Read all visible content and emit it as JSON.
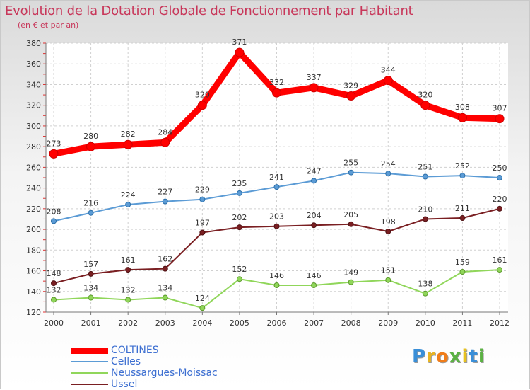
{
  "title": "Evolution de la Dotation Globale de Fonctionnement par Habitant",
  "subtitle": "(en € et par an)",
  "logo_text": "Proxiti",
  "chart_data": {
    "type": "line",
    "title": "Evolution de la Dotation Globale de Fonctionnement par Habitant",
    "subtitle": "(en € et par an)",
    "xlabel": "",
    "ylabel": "",
    "x": [
      "2000",
      "2001",
      "2002",
      "2003",
      "2004",
      "2005",
      "2006",
      "2007",
      "2008",
      "2009",
      "2010",
      "2011",
      "2012"
    ],
    "ylim": [
      120,
      380
    ],
    "yticks": [
      "120",
      "140",
      "160",
      "180",
      "200",
      "220",
      "240",
      "260",
      "280",
      "300",
      "320",
      "340",
      "360",
      "380"
    ],
    "grid": true,
    "legend": "bottom-left",
    "series": [
      {
        "name": "COLTINES",
        "color": "#ff0000",
        "values": [
          273,
          280,
          282,
          284,
          320,
          371,
          332,
          337,
          329,
          344,
          320,
          308,
          307
        ]
      },
      {
        "name": "Celles",
        "color": "#5b9bd5",
        "values": [
          208,
          216,
          224,
          227,
          229,
          235,
          241,
          247,
          255,
          254,
          251,
          252,
          250
        ]
      },
      {
        "name": "Neussargues-Moissac",
        "color": "#90d65a",
        "values": [
          132,
          134,
          132,
          134,
          124,
          152,
          146,
          146,
          149,
          151,
          138,
          159,
          161
        ]
      },
      {
        "name": "Ussel",
        "color": "#7a1f22",
        "values": [
          148,
          157,
          161,
          162,
          197,
          202,
          203,
          204,
          205,
          198,
          210,
          211,
          220
        ]
      }
    ]
  }
}
